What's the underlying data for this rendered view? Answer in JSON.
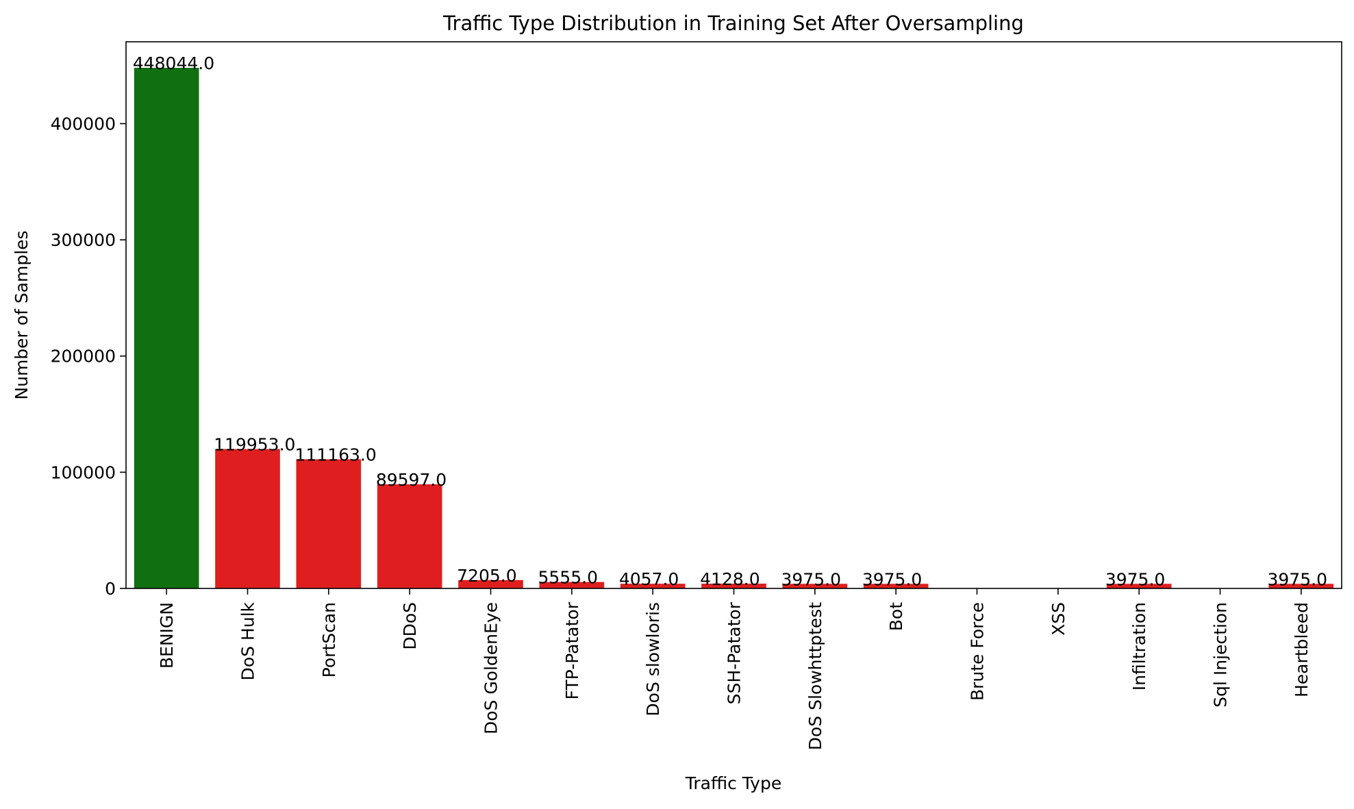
{
  "chart_data": {
    "type": "bar",
    "title": "Traffic Type Distribution in Training Set After Oversampling",
    "xlabel": "Traffic Type",
    "ylabel": "Number of Samples",
    "categories": [
      "BENIGN",
      "DoS Hulk",
      "PortScan",
      "DDoS",
      "DoS GoldenEye",
      "FTP-Patator",
      "DoS slowloris",
      "SSH-Patator",
      "DoS Slowhttptest",
      "Bot",
      "Brute Force",
      "XSS",
      "Infiltration",
      "Sql Injection",
      "Heartbleed"
    ],
    "values": [
      448044.0,
      119953.0,
      111163.0,
      89597.0,
      7205.0,
      5555.0,
      4057.0,
      4128.0,
      3975.0,
      3975.0,
      0,
      0,
      3975.0,
      0,
      3975.0
    ],
    "data_labels": [
      "448044.0",
      "119953.0",
      "111163.0",
      "89597.0",
      "7205.0",
      "5555.0",
      "4057.0",
      "4128.0",
      "3975.0",
      "3975.0",
      "",
      "",
      "3975.0",
      "",
      "3975.0"
    ],
    "colors": [
      "#107010",
      "#df1f1f",
      "#df1f1f",
      "#df1f1f",
      "#df1f1f",
      "#df1f1f",
      "#df1f1f",
      "#df1f1f",
      "#df1f1f",
      "#df1f1f",
      "#df1f1f",
      "#df1f1f",
      "#df1f1f",
      "#df1f1f",
      "#df1f1f"
    ],
    "yticks": [
      0,
      100000,
      200000,
      300000,
      400000
    ],
    "ytick_labels": [
      "0",
      "100000",
      "200000",
      "300000",
      "400000"
    ],
    "ylim": [
      0,
      470446
    ],
    "grid": false,
    "legend": "none"
  }
}
